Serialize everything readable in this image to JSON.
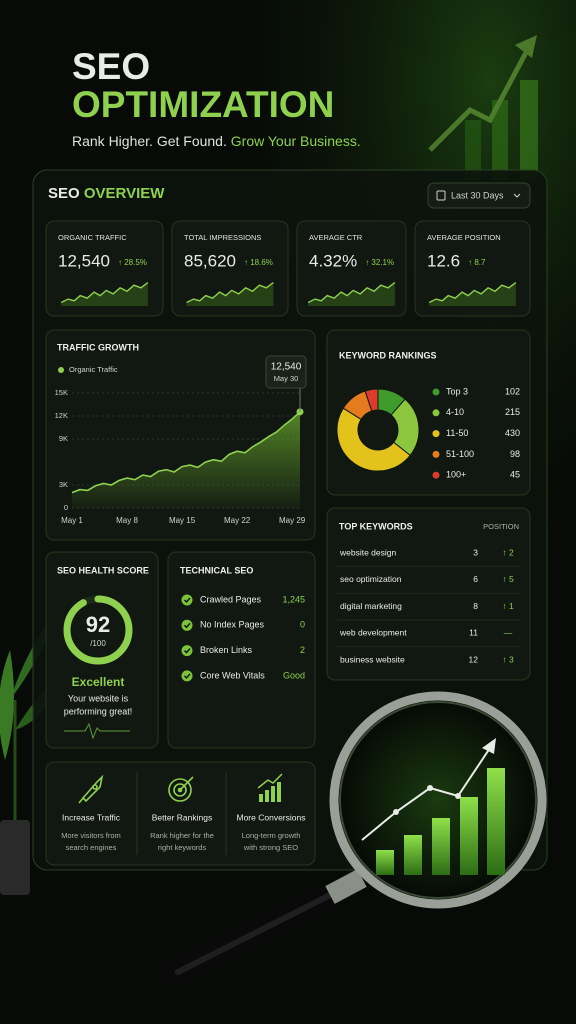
{
  "header": {
    "title": [
      "SEO",
      "OPTIMIZATION"
    ],
    "tagline": [
      "Rank Higher. Get Found.",
      "Grow Your Business."
    ]
  },
  "overview": {
    "title": [
      "SEO",
      "OVERVIEW"
    ],
    "date_range": "Last 30 Days"
  },
  "metrics": [
    {
      "label": "ORGANIC TRAFFIC",
      "value": "12,540",
      "change": "↑ 28.5%"
    },
    {
      "label": "TOTAL IMPRESSIONS",
      "value": "85,620",
      "change": "↑ 18.6%"
    },
    {
      "label": "AVERAGE CTR",
      "value": "4.32%",
      "change": "↑ 32.1%"
    },
    {
      "label": "AVERAGE POSITION",
      "value": "12.6",
      "change": "↑ 8.7"
    }
  ],
  "chart_data": [
    {
      "type": "line",
      "title": "TRAFFIC GROWTH",
      "categories": [
        "May 1",
        null,
        null,
        null,
        null,
        null,
        null,
        "May 8",
        null,
        null,
        null,
        null,
        null,
        null,
        "May 15",
        null,
        null,
        null,
        null,
        null,
        null,
        "May 22",
        null,
        null,
        null,
        null,
        null,
        null,
        "May 29",
        null
      ],
      "series": [
        {
          "name": "Organic Traffic",
          "color": "#8fd14f",
          "values": [
            2000,
            2400,
            2300,
            2900,
            3200,
            3000,
            3600,
            3900,
            3700,
            4300,
            4100,
            4800,
            5000,
            4700,
            5400,
            5600,
            5300,
            6000,
            6300,
            6100,
            7000,
            7400,
            7200,
            8000,
            8600,
            9300,
            9900,
            10800,
            11600,
            12540
          ]
        }
      ],
      "ylim": [
        0,
        15000
      ],
      "yticks": [
        0,
        {
          "value": 3000,
          "label": "3K"
        },
        {
          "value": 9000,
          "label": "9K"
        },
        {
          "value": 12000,
          "label": "12K"
        },
        {
          "value": 15000,
          "label": "15K"
        }
      ],
      "grid": true,
      "annotation": {
        "value_label": "12,540",
        "x_label": "May 30"
      }
    },
    {
      "type": "donut",
      "title": "KEYWORD RANKINGS",
      "categories": [
        "Top 3",
        "4-10",
        "11-50",
        "51-100",
        "100+"
      ],
      "values": [
        102,
        215,
        430,
        98,
        45
      ],
      "colors": [
        "#3f9b2c",
        "#8cc63f",
        "#e3c21c",
        "#e67a1e",
        "#de3b2b"
      ]
    }
  ],
  "top_keywords": {
    "title": "TOP KEYWORDS",
    "column": "POSITION",
    "rows": [
      [
        "website design",
        3,
        "↑ 2"
      ],
      [
        "seo optimization",
        6,
        "↑ 5"
      ],
      [
        "digital marketing",
        8,
        "↑ 1"
      ],
      [
        "web development",
        11,
        "—"
      ],
      [
        "business website",
        12,
        "↑ 3"
      ]
    ]
  },
  "health_score": {
    "title": "SEO HEALTH SCORE",
    "score": 92,
    "max": {
      "value": 100,
      "label": "/100"
    },
    "rating": "Excellent",
    "description": [
      "Your website is",
      "performing great!"
    ]
  },
  "technical_seo": {
    "title": "TECHNICAL SEO",
    "items": [
      [
        "Crawled Pages",
        "1,245"
      ],
      [
        "No Index Pages",
        "0"
      ],
      [
        "Broken Links",
        "2"
      ],
      [
        "Core Web Vitals",
        "Good"
      ]
    ]
  },
  "features": [
    {
      "title": "Increase Traffic",
      "description": [
        "More visitors from",
        "search engines"
      ]
    },
    {
      "title": "Better Rankings",
      "description": [
        "Rank higher for the",
        "right keywords"
      ]
    },
    {
      "title": "More Conversions",
      "description": [
        "Long-term growth",
        "with strong SEO"
      ]
    }
  ]
}
